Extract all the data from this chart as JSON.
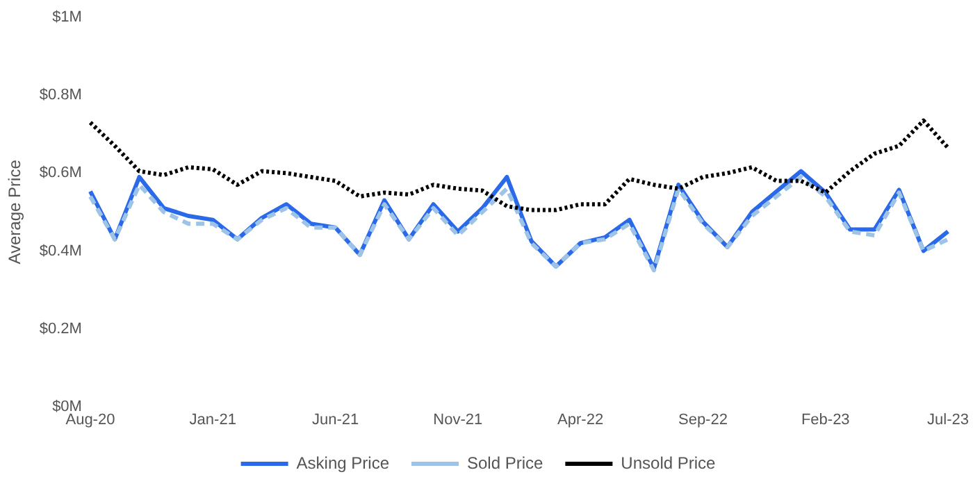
{
  "chart_data": {
    "type": "line",
    "ylabel": "Average Price",
    "categories": [
      "Aug-20",
      null,
      null,
      null,
      null,
      "Jan-21",
      null,
      null,
      null,
      null,
      "Jun-21",
      null,
      null,
      null,
      null,
      "Nov-21",
      null,
      null,
      null,
      null,
      "Apr-22",
      null,
      null,
      null,
      null,
      "Sep-22",
      null,
      null,
      null,
      null,
      "Feb-23",
      null,
      null,
      null,
      null,
      "Jul-23"
    ],
    "ylim": [
      0,
      1
    ],
    "yticks": [
      {
        "value": 0,
        "label": "$0M"
      },
      {
        "value": 0.2,
        "label": "$0.2M"
      },
      {
        "value": 0.4,
        "label": "$0.4M"
      },
      {
        "value": 0.6,
        "label": "$0.6M"
      },
      {
        "value": 0.8,
        "label": "$0.8M"
      },
      {
        "value": 1,
        "label": "$1M"
      }
    ],
    "grid": false,
    "legend": "bottom",
    "marker": "none",
    "series": [
      {
        "name": "Asking Price",
        "color": "#2a6ae8",
        "line_style": "solid",
        "values": [
          0.553,
          0.43,
          0.59,
          0.51,
          0.49,
          0.48,
          0.43,
          0.485,
          0.52,
          0.47,
          0.46,
          0.39,
          0.53,
          0.43,
          0.52,
          0.45,
          0.51,
          0.59,
          0.425,
          0.36,
          0.42,
          0.435,
          0.48,
          0.355,
          0.57,
          0.475,
          0.41,
          0.5,
          0.553,
          0.605,
          0.55,
          0.455,
          0.455,
          0.557,
          0.4,
          0.45
        ]
      },
      {
        "name": "Sold Price",
        "color": "#9dc3e6",
        "line_style": "dashed",
        "values": [
          0.54,
          0.43,
          0.57,
          0.5,
          0.47,
          0.47,
          0.43,
          0.48,
          0.51,
          0.46,
          0.46,
          0.39,
          0.52,
          0.43,
          0.51,
          0.44,
          0.5,
          0.56,
          0.42,
          0.36,
          0.42,
          0.43,
          0.47,
          0.35,
          0.56,
          0.47,
          0.41,
          0.49,
          0.54,
          0.59,
          0.54,
          0.45,
          0.44,
          0.55,
          0.4,
          0.43
        ]
      },
      {
        "name": "Unsold Price",
        "color": "#000000",
        "line_style": "dotted",
        "values": [
          0.73,
          0.67,
          0.605,
          0.595,
          0.615,
          0.61,
          0.57,
          0.605,
          0.6,
          0.59,
          0.58,
          0.54,
          0.55,
          0.545,
          0.57,
          0.56,
          0.555,
          0.515,
          0.505,
          0.505,
          0.52,
          0.52,
          0.585,
          0.57,
          0.56,
          0.59,
          0.6,
          0.615,
          0.58,
          0.58,
          0.55,
          0.605,
          0.65,
          0.67,
          0.735,
          0.665
        ]
      }
    ]
  }
}
